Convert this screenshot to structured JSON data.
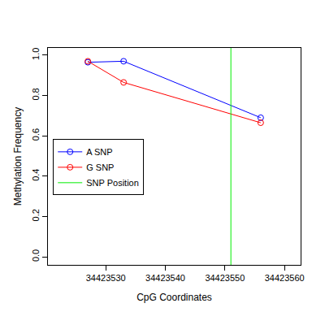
{
  "chart_data": {
    "type": "line",
    "x_label": "CpG Coordinates",
    "y_label": "Methylation Frequency",
    "x": [
      34423527,
      34423533,
      34423556
    ],
    "series": [
      {
        "name": "A SNP",
        "color": "#0000ff",
        "values": [
          0.965,
          0.97,
          0.69
        ]
      },
      {
        "name": "G SNP",
        "color": "#ff0000",
        "values": [
          0.97,
          0.865,
          0.665
        ]
      }
    ],
    "vlines": [
      {
        "name": "SNP Position",
        "color": "#00ee00",
        "x": 34423551
      }
    ],
    "marker": "open_circle",
    "xlim": [
      34423520.3,
      34423562.7
    ],
    "xticks": [
      34423530,
      34423540,
      34423550,
      34423560
    ],
    "ylim": [
      -0.04,
      1.036
    ],
    "yticks": [
      {
        "value": 0,
        "label": "0.0"
      },
      0.2,
      0.4,
      0.6,
      0.8,
      {
        "value": 1,
        "label": "1.0"
      }
    ],
    "legend": "left",
    "grid": false
  }
}
